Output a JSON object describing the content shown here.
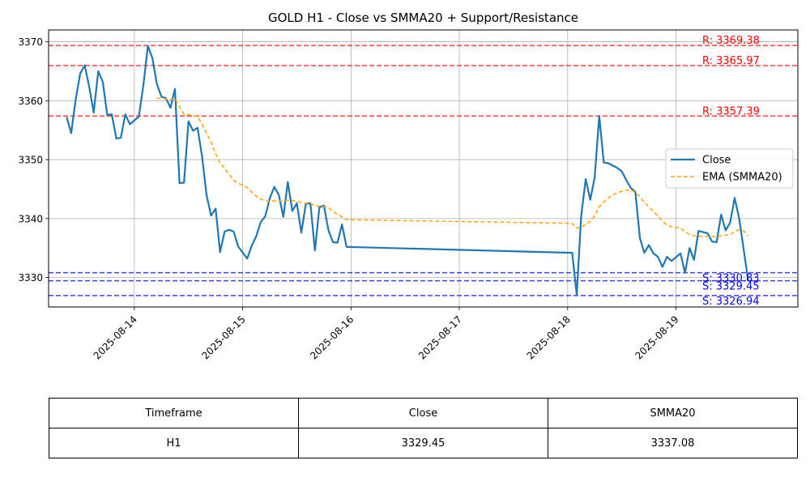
{
  "chart_data": {
    "type": "line",
    "title": "GOLD H1 - Close vs SMMA20 + Support/Resistance",
    "xlabel": "",
    "ylabel": "",
    "xlim": [
      "2025-08-13 05:00",
      "2025-08-20 03:00"
    ],
    "ylim": [
      3325,
      3372
    ],
    "x_ticks": [
      "2025-08-14",
      "2025-08-15",
      "2025-08-16",
      "2025-08-17",
      "2025-08-18",
      "2025-08-19"
    ],
    "y_ticks": [
      3330,
      3340,
      3350,
      3360,
      3370
    ],
    "grid": true,
    "legend_position": "center-right",
    "series": [
      {
        "name": "Close",
        "color": "#1f77b4",
        "style": "solid",
        "points": [
          [
            "2025-08-13 09:00",
            3357.2
          ],
          [
            "2025-08-13 10:00",
            3354.5
          ],
          [
            "2025-08-13 11:00",
            3360.2
          ],
          [
            "2025-08-13 12:00",
            3364.6
          ],
          [
            "2025-08-13 13:00",
            3366.0
          ],
          [
            "2025-08-13 14:00",
            3362.3
          ],
          [
            "2025-08-13 15:00",
            3358.0
          ],
          [
            "2025-08-13 16:00",
            3365.0
          ],
          [
            "2025-08-13 17:00",
            3363.2
          ],
          [
            "2025-08-13 18:00",
            3357.6
          ],
          [
            "2025-08-13 19:00",
            3357.7
          ],
          [
            "2025-08-13 20:00",
            3353.6
          ],
          [
            "2025-08-13 21:00",
            3353.7
          ],
          [
            "2025-08-13 22:00",
            3357.7
          ],
          [
            "2025-08-13 23:00",
            3356.0
          ],
          [
            "2025-08-14 01:00",
            3357.3
          ],
          [
            "2025-08-14 02:00",
            3362.6
          ],
          [
            "2025-08-14 03:00",
            3369.3
          ],
          [
            "2025-08-14 04:00",
            3367.2
          ],
          [
            "2025-08-14 05:00",
            3362.8
          ],
          [
            "2025-08-14 06:00",
            3360.7
          ],
          [
            "2025-08-14 07:00",
            3360.4
          ],
          [
            "2025-08-14 08:00",
            3358.8
          ],
          [
            "2025-08-14 09:00",
            3362.0
          ],
          [
            "2025-08-14 10:00",
            3346.0
          ],
          [
            "2025-08-14 11:00",
            3346.1
          ],
          [
            "2025-08-14 12:00",
            3356.5
          ],
          [
            "2025-08-14 13:00",
            3354.9
          ],
          [
            "2025-08-14 14:00",
            3355.4
          ],
          [
            "2025-08-14 15:00",
            3350.5
          ],
          [
            "2025-08-14 16:00",
            3344.0
          ],
          [
            "2025-08-14 17:00",
            3340.5
          ],
          [
            "2025-08-14 18:00",
            3341.7
          ],
          [
            "2025-08-14 19:00",
            3334.3
          ],
          [
            "2025-08-14 20:00",
            3337.8
          ],
          [
            "2025-08-14 21:00",
            3338.1
          ],
          [
            "2025-08-14 22:00",
            3337.8
          ],
          [
            "2025-08-14 23:00",
            3335.3
          ],
          [
            "2025-08-15 01:00",
            3333.2
          ],
          [
            "2025-08-15 02:00",
            3335.4
          ],
          [
            "2025-08-15 03:00",
            3337.0
          ],
          [
            "2025-08-15 04:00",
            3339.4
          ],
          [
            "2025-08-15 05:00",
            3340.4
          ],
          [
            "2025-08-15 06:00",
            3343.4
          ],
          [
            "2025-08-15 07:00",
            3345.4
          ],
          [
            "2025-08-15 08:00",
            3344.0
          ],
          [
            "2025-08-15 09:00",
            3340.3
          ],
          [
            "2025-08-15 10:00",
            3346.2
          ],
          [
            "2025-08-15 11:00",
            3341.3
          ],
          [
            "2025-08-15 12:00",
            3342.6
          ],
          [
            "2025-08-15 13:00",
            3337.6
          ],
          [
            "2025-08-15 14:00",
            3342.5
          ],
          [
            "2025-08-15 15:00",
            3342.6
          ],
          [
            "2025-08-15 16:00",
            3334.6
          ],
          [
            "2025-08-15 17:00",
            3341.9
          ],
          [
            "2025-08-15 18:00",
            3342.2
          ],
          [
            "2025-08-15 19:00",
            3338.0
          ],
          [
            "2025-08-15 20:00",
            3336.0
          ],
          [
            "2025-08-15 21:00",
            3335.9
          ],
          [
            "2025-08-15 22:00",
            3339.0
          ],
          [
            "2025-08-15 23:00",
            3335.2
          ],
          [
            "2025-08-18 01:00",
            3334.2
          ],
          [
            "2025-08-18 02:00",
            3327.0
          ],
          [
            "2025-08-18 03:00",
            3340.4
          ],
          [
            "2025-08-18 04:00",
            3346.7
          ],
          [
            "2025-08-18 05:00",
            3343.2
          ],
          [
            "2025-08-18 06:00",
            3347.0
          ],
          [
            "2025-08-18 07:00",
            3357.4
          ],
          [
            "2025-08-18 08:00",
            3349.5
          ],
          [
            "2025-08-18 09:00",
            3349.4
          ],
          [
            "2025-08-18 10:00",
            3349.0
          ],
          [
            "2025-08-18 11:00",
            3348.6
          ],
          [
            "2025-08-18 12:00",
            3348.0
          ],
          [
            "2025-08-18 13:00",
            3346.5
          ],
          [
            "2025-08-18 14:00",
            3345.2
          ],
          [
            "2025-08-18 15:00",
            3344.5
          ],
          [
            "2025-08-18 16:00",
            3336.7
          ],
          [
            "2025-08-18 17:00",
            3334.2
          ],
          [
            "2025-08-18 18:00",
            3335.5
          ],
          [
            "2025-08-18 19:00",
            3334.1
          ],
          [
            "2025-08-18 20:00",
            3333.5
          ],
          [
            "2025-08-18 21:00",
            3331.8
          ],
          [
            "2025-08-18 22:00",
            3333.5
          ],
          [
            "2025-08-18 23:00",
            3332.8
          ],
          [
            "2025-08-19 01:00",
            3334.1
          ],
          [
            "2025-08-19 02:00",
            3330.8
          ],
          [
            "2025-08-19 03:00",
            3335.0
          ],
          [
            "2025-08-19 04:00",
            3333.0
          ],
          [
            "2025-08-19 05:00",
            3337.9
          ],
          [
            "2025-08-19 06:00",
            3337.7
          ],
          [
            "2025-08-19 07:00",
            3337.5
          ],
          [
            "2025-08-19 08:00",
            3336.1
          ],
          [
            "2025-08-19 09:00",
            3336.0
          ],
          [
            "2025-08-19 10:00",
            3340.7
          ],
          [
            "2025-08-19 11:00",
            3338.0
          ],
          [
            "2025-08-19 12:00",
            3339.3
          ],
          [
            "2025-08-19 13:00",
            3343.5
          ],
          [
            "2025-08-19 14:00",
            3340.0
          ],
          [
            "2025-08-19 15:00",
            3334.8
          ],
          [
            "2025-08-19 16:00",
            3329.45
          ]
        ]
      },
      {
        "name": "EMA (SMMA20)",
        "color": "#ffa500",
        "style": "dashed",
        "points": [
          [
            "2025-08-14 05:00",
            3360.4
          ],
          [
            "2025-08-14 06:00",
            3360.4
          ],
          [
            "2025-08-14 07:00",
            3360.3
          ],
          [
            "2025-08-14 08:00",
            3360.2
          ],
          [
            "2025-08-14 09:00",
            3360.3
          ],
          [
            "2025-08-14 10:00",
            3359.0
          ],
          [
            "2025-08-14 11:00",
            3357.7
          ],
          [
            "2025-08-14 12:00",
            3357.6
          ],
          [
            "2025-08-14 13:00",
            3357.5
          ],
          [
            "2025-08-14 14:00",
            3357.3
          ],
          [
            "2025-08-14 15:00",
            3356.0
          ],
          [
            "2025-08-14 16:00",
            3354.5
          ],
          [
            "2025-08-14 17:00",
            3353.0
          ],
          [
            "2025-08-14 18:00",
            3351.0
          ],
          [
            "2025-08-14 19:00",
            3349.5
          ],
          [
            "2025-08-14 20:00",
            3348.5
          ],
          [
            "2025-08-14 21:00",
            3347.5
          ],
          [
            "2025-08-14 22:00",
            3346.5
          ],
          [
            "2025-08-14 23:00",
            3346.0
          ],
          [
            "2025-08-15 01:00",
            3345.3
          ],
          [
            "2025-08-15 02:00",
            3344.5
          ],
          [
            "2025-08-15 03:00",
            3343.8
          ],
          [
            "2025-08-15 04:00",
            3343.3
          ],
          [
            "2025-08-15 05:00",
            3343.0
          ],
          [
            "2025-08-15 06:00",
            3342.9
          ],
          [
            "2025-08-15 07:00",
            3343.0
          ],
          [
            "2025-08-15 08:00",
            3343.0
          ],
          [
            "2025-08-15 09:00",
            3342.9
          ],
          [
            "2025-08-15 10:00",
            3343.1
          ],
          [
            "2025-08-15 11:00",
            3343.0
          ],
          [
            "2025-08-15 12:00",
            3343.0
          ],
          [
            "2025-08-15 13:00",
            3342.7
          ],
          [
            "2025-08-15 14:00",
            3342.6
          ],
          [
            "2025-08-15 15:00",
            3342.6
          ],
          [
            "2025-08-15 16:00",
            3342.2
          ],
          [
            "2025-08-15 17:00",
            3342.1
          ],
          [
            "2025-08-15 18:00",
            3342.1
          ],
          [
            "2025-08-15 19:00",
            3341.9
          ],
          [
            "2025-08-15 20:00",
            3341.2
          ],
          [
            "2025-08-15 21:00",
            3340.7
          ],
          [
            "2025-08-15 22:00",
            3340.3
          ],
          [
            "2025-08-15 23:00",
            3339.8
          ],
          [
            "2025-08-18 01:00",
            3339.2
          ],
          [
            "2025-08-18 02:00",
            3338.4
          ],
          [
            "2025-08-18 03:00",
            3338.5
          ],
          [
            "2025-08-18 04:00",
            3339.0
          ],
          [
            "2025-08-18 05:00",
            3339.5
          ],
          [
            "2025-08-18 06:00",
            3340.5
          ],
          [
            "2025-08-18 07:00",
            3342.0
          ],
          [
            "2025-08-18 08:00",
            3342.8
          ],
          [
            "2025-08-18 09:00",
            3343.5
          ],
          [
            "2025-08-18 10:00",
            3344.0
          ],
          [
            "2025-08-18 11:00",
            3344.4
          ],
          [
            "2025-08-18 12:00",
            3344.6
          ],
          [
            "2025-08-18 13:00",
            3344.8
          ],
          [
            "2025-08-18 14:00",
            3344.9
          ],
          [
            "2025-08-18 15:00",
            3344.4
          ],
          [
            "2025-08-18 16:00",
            3343.7
          ],
          [
            "2025-08-18 17:00",
            3342.8
          ],
          [
            "2025-08-18 18:00",
            3342.0
          ],
          [
            "2025-08-18 19:00",
            3341.2
          ],
          [
            "2025-08-18 20:00",
            3340.4
          ],
          [
            "2025-08-18 21:00",
            3339.6
          ],
          [
            "2025-08-18 22:00",
            3338.9
          ],
          [
            "2025-08-18 23:00",
            3338.6
          ],
          [
            "2025-08-19 01:00",
            3338.4
          ],
          [
            "2025-08-19 02:00",
            3337.8
          ],
          [
            "2025-08-19 03:00",
            3337.3
          ],
          [
            "2025-08-19 04:00",
            3337.1
          ],
          [
            "2025-08-19 05:00",
            3337.0
          ],
          [
            "2025-08-19 06:00",
            3337.0
          ],
          [
            "2025-08-19 07:00",
            3337.0
          ],
          [
            "2025-08-19 08:00",
            3337.0
          ],
          [
            "2025-08-19 09:00",
            3336.9
          ],
          [
            "2025-08-19 10:00",
            3337.1
          ],
          [
            "2025-08-19 11:00",
            3337.2
          ],
          [
            "2025-08-19 12:00",
            3337.3
          ],
          [
            "2025-08-19 13:00",
            3337.8
          ],
          [
            "2025-08-19 14:00",
            3338.1
          ],
          [
            "2025-08-19 15:00",
            3337.9
          ],
          [
            "2025-08-19 16:00",
            3337.08
          ]
        ]
      }
    ],
    "levels": [
      {
        "type": "resistance",
        "value": 3369.38,
        "label": "R: 3369.38",
        "color": "#ff0000"
      },
      {
        "type": "resistance",
        "value": 3365.97,
        "label": "R: 3365.97",
        "color": "#ff0000"
      },
      {
        "type": "resistance",
        "value": 3357.39,
        "label": "R: 3357.39",
        "color": "#ff0000"
      },
      {
        "type": "support",
        "value": 3330.83,
        "label": "S: 3330.83",
        "color": "#0000ff"
      },
      {
        "type": "support",
        "value": 3329.45,
        "label": "S: 3329.45",
        "color": "#0000ff"
      },
      {
        "type": "support",
        "value": 3326.94,
        "label": "S: 3326.94",
        "color": "#0000ff"
      }
    ]
  },
  "table": {
    "headers": [
      "Timeframe",
      "Close",
      "SMMA20"
    ],
    "row": [
      "H1",
      "3329.45",
      "3337.08"
    ]
  }
}
